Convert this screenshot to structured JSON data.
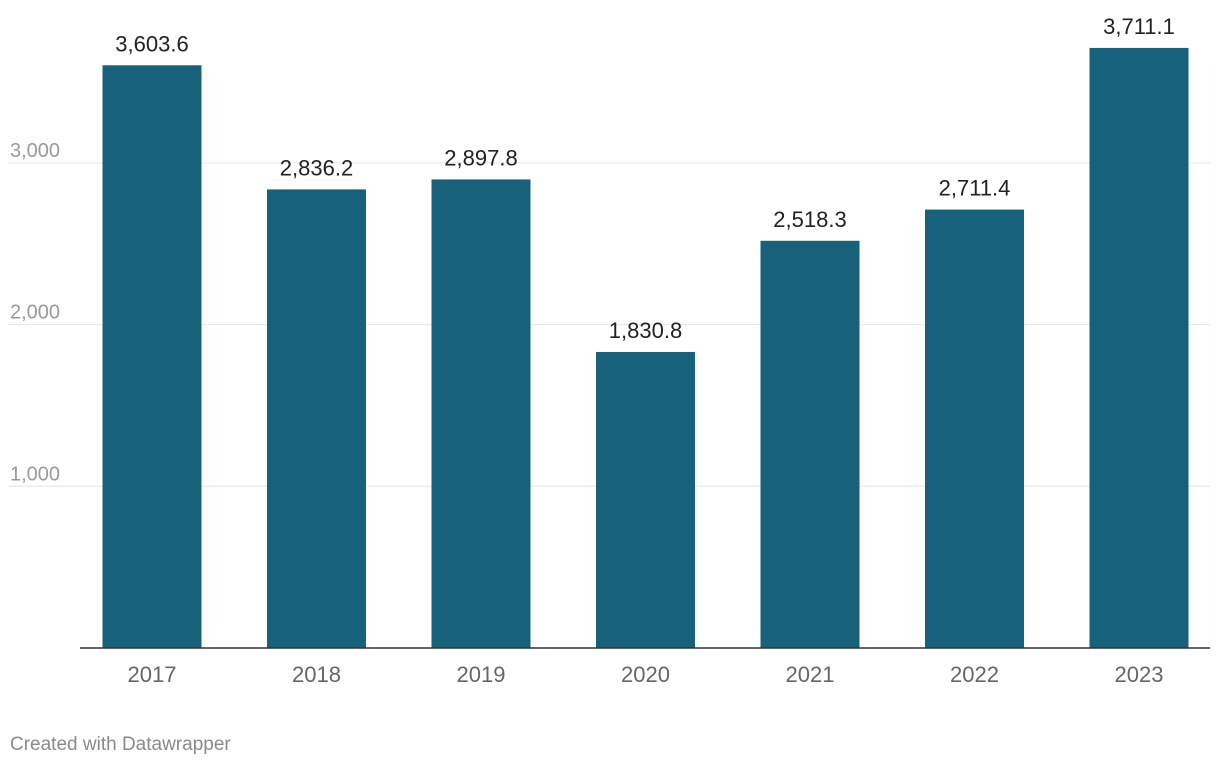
{
  "chart_data": {
    "type": "bar",
    "categories": [
      "2017",
      "2018",
      "2019",
      "2020",
      "2021",
      "2022",
      "2023"
    ],
    "values": [
      3603.6,
      2836.2,
      2897.8,
      1830.8,
      2518.3,
      2711.4,
      3711.1
    ],
    "value_labels": [
      "3,603.6",
      "2,836.2",
      "2,897.8",
      "1,830.8",
      "2,518.3",
      "2,711.4",
      "3,711.1"
    ],
    "y_ticks": [
      1000,
      2000,
      3000
    ],
    "y_tick_labels": [
      "1,000",
      "2,000",
      "3,000"
    ],
    "title": "",
    "xlabel": "",
    "ylabel": "",
    "ylim": [
      0,
      4000
    ],
    "grid": true,
    "bar_color": "#17627a"
  },
  "footer": {
    "credit": "Created with Datawrapper"
  }
}
